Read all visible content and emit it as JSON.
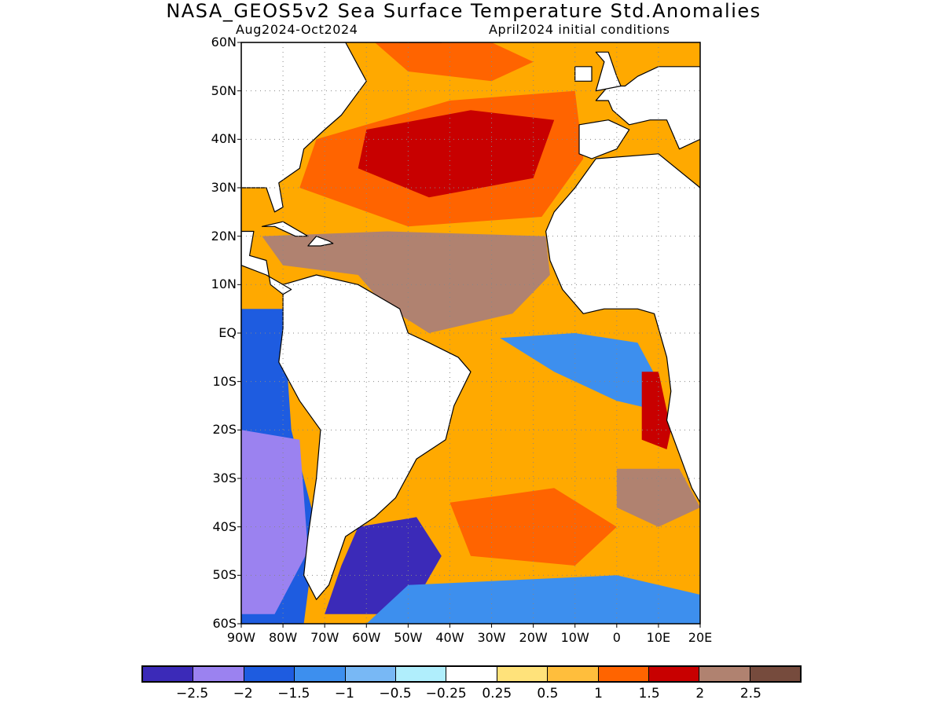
{
  "title": "NASA_GEOS5v2 Sea Surface Temperature Std.Anomalies",
  "subtitle_left": "Aug2024-Oct2024",
  "subtitle_right": "April2024 initial conditions",
  "map": {
    "lon_range": [
      -90,
      20
    ],
    "lat_range": [
      -60,
      60
    ],
    "lat_ticks": [
      {
        "value": 60,
        "label": "60N"
      },
      {
        "value": 50,
        "label": "50N"
      },
      {
        "value": 40,
        "label": "40N"
      },
      {
        "value": 30,
        "label": "30N"
      },
      {
        "value": 20,
        "label": "20N"
      },
      {
        "value": 10,
        "label": "10N"
      },
      {
        "value": 0,
        "label": "EQ"
      },
      {
        "value": -10,
        "label": "10S"
      },
      {
        "value": -20,
        "label": "20S"
      },
      {
        "value": -30,
        "label": "30S"
      },
      {
        "value": -40,
        "label": "40S"
      },
      {
        "value": -50,
        "label": "50S"
      },
      {
        "value": -60,
        "label": "60S"
      }
    ],
    "lon_ticks": [
      {
        "value": -90,
        "label": "90W"
      },
      {
        "value": -80,
        "label": "80W"
      },
      {
        "value": -70,
        "label": "70W"
      },
      {
        "value": -60,
        "label": "60W"
      },
      {
        "value": -50,
        "label": "50W"
      },
      {
        "value": -40,
        "label": "40W"
      },
      {
        "value": -30,
        "label": "30W"
      },
      {
        "value": -20,
        "label": "20W"
      },
      {
        "value": -10,
        "label": "10W"
      },
      {
        "value": 0,
        "label": "0"
      },
      {
        "value": 10,
        "label": "10E"
      },
      {
        "value": 20,
        "label": "20E"
      }
    ],
    "gridlines": true,
    "land_color": "#ffffff",
    "ocean_base_color": "#ffa900",
    "anomaly_regions": [
      {
        "name": "north-atlantic-warm",
        "level": 1.5,
        "points": [
          [
            -72,
            40
          ],
          [
            -40,
            48
          ],
          [
            -10,
            50
          ],
          [
            -8,
            36
          ],
          [
            -18,
            24
          ],
          [
            -50,
            22
          ],
          [
            -76,
            30
          ]
        ]
      },
      {
        "name": "north-atlantic-hot-core",
        "level": 2,
        "points": [
          [
            -60,
            42
          ],
          [
            -35,
            46
          ],
          [
            -15,
            44
          ],
          [
            -20,
            32
          ],
          [
            -45,
            28
          ],
          [
            -62,
            34
          ]
        ]
      },
      {
        "name": "subpolar-strong",
        "level": 1.5,
        "points": [
          [
            -58,
            60
          ],
          [
            -30,
            60
          ],
          [
            -20,
            56
          ],
          [
            -30,
            52
          ],
          [
            -50,
            54
          ]
        ]
      },
      {
        "name": "mdr-very-hot",
        "level": 2.5,
        "points": [
          [
            -85,
            20
          ],
          [
            -55,
            21
          ],
          [
            -17,
            20
          ],
          [
            -16,
            12
          ],
          [
            -25,
            4
          ],
          [
            -45,
            0
          ],
          [
            -56,
            6
          ],
          [
            -62,
            12
          ],
          [
            -80,
            14
          ]
        ]
      },
      {
        "name": "gulf-of-guinea-cool",
        "level": -1,
        "points": [
          [
            -28,
            -1
          ],
          [
            -10,
            0
          ],
          [
            5,
            -2
          ],
          [
            10,
            -10
          ],
          [
            10,
            -16
          ],
          [
            0,
            -14
          ],
          [
            -15,
            -8
          ]
        ]
      },
      {
        "name": "benguela-hot",
        "level": 2,
        "points": [
          [
            6,
            -8
          ],
          [
            10,
            -8
          ],
          [
            13,
            -20
          ],
          [
            12,
            -24
          ],
          [
            6,
            -22
          ]
        ]
      },
      {
        "name": "south-atlantic-hot",
        "level": 2.5,
        "points": [
          [
            0,
            -28
          ],
          [
            15,
            -28
          ],
          [
            20,
            -36
          ],
          [
            10,
            -40
          ],
          [
            0,
            -36
          ]
        ]
      },
      {
        "name": "south-atlantic-mid",
        "level": 1.5,
        "points": [
          [
            -40,
            -35
          ],
          [
            -15,
            -32
          ],
          [
            0,
            -40
          ],
          [
            -10,
            -48
          ],
          [
            -35,
            -46
          ]
        ]
      },
      {
        "name": "patagonia-cold",
        "level": -2.5,
        "points": [
          [
            -62,
            -40
          ],
          [
            -48,
            -38
          ],
          [
            -42,
            -46
          ],
          [
            -50,
            -58
          ],
          [
            -70,
            -58
          ],
          [
            -66,
            -48
          ]
        ]
      },
      {
        "name": "southern-ocean-cool",
        "level": -1,
        "points": [
          [
            -50,
            -52
          ],
          [
            0,
            -50
          ],
          [
            20,
            -54
          ],
          [
            20,
            -60
          ],
          [
            -60,
            -60
          ]
        ]
      },
      {
        "name": "pacific-cold",
        "level": -1.5,
        "points": [
          [
            -90,
            5
          ],
          [
            -80,
            5
          ],
          [
            -78,
            -20
          ],
          [
            -72,
            -40
          ],
          [
            -75,
            -60
          ],
          [
            -90,
            -60
          ]
        ]
      },
      {
        "name": "pacific-very-cold",
        "level": -2,
        "points": [
          [
            -90,
            -20
          ],
          [
            -76,
            -22
          ],
          [
            -74,
            -45
          ],
          [
            -82,
            -58
          ],
          [
            -90,
            -58
          ]
        ]
      }
    ]
  },
  "colorbar": {
    "colors": [
      "#3b2ab8",
      "#9b82f0",
      "#1e5ce0",
      "#3d8fee",
      "#78b8f5",
      "#b0eefc",
      "#ffffff",
      "#ffe27a",
      "#ffbe3c",
      "#ff6400",
      "#c80000",
      "#b08270",
      "#764b3d"
    ],
    "labels": [
      "-2.5",
      "-2",
      "-1.5",
      "-1",
      "-0.5",
      "-0.25",
      "0.25",
      "0.5",
      "1",
      "1.5",
      "2",
      "2.5"
    ]
  }
}
